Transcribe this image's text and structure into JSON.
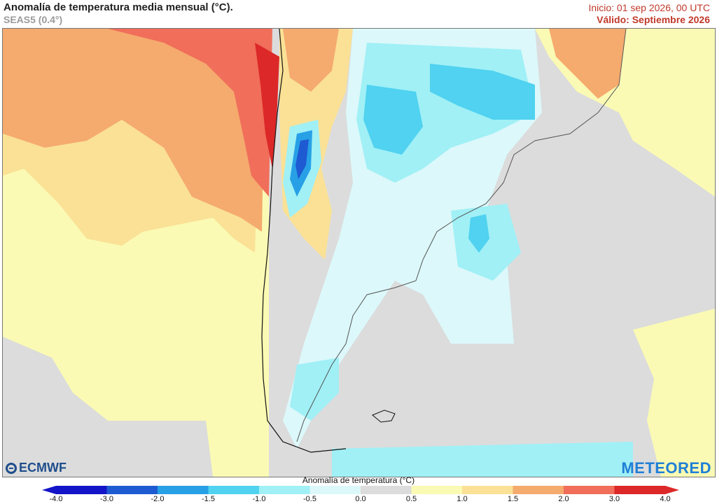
{
  "header": {
    "title": "Anomalía de temperatura media mensual (°C).",
    "model": "SEAS5 (0.4°)",
    "init_text": "Inicio: 01 sep 2026, 00 UTC",
    "valid_text": "Válido: Septiembre 2026"
  },
  "logos": {
    "left": "ECMWF",
    "right": "METEORED"
  },
  "legend": {
    "title": "Anomalía de temperatura (°C)",
    "ticks": [
      "-4.0",
      "-3.0",
      "-2.0",
      "-1.5",
      "-1.0",
      "-0.5",
      "0.0",
      "0.5",
      "1.0",
      "1.5",
      "2.0",
      "3.0",
      "4.0"
    ],
    "colors": [
      "#1414c8",
      "#1e5ad2",
      "#28a0e6",
      "#50d2f0",
      "#a0f0f6",
      "#dcf8fa",
      "#dcdcdc",
      "#fafab4",
      "#fae196",
      "#f5aa6e",
      "#f06e5a",
      "#dc2828"
    ]
  },
  "map": {
    "colors": {
      "ocean_neutral": "#dcdcdc",
      "land_neutral": "#d7d7d7",
      "weak_warm": "#fafab4",
      "warm": "#fae196",
      "moderate_warm": "#f5aa6e",
      "strong_warm": "#f06e5a",
      "extreme_warm": "#dc2828",
      "weak_cool": "#dcf8fa",
      "cool": "#a0f0f6",
      "moderate_cool": "#50d2f0",
      "strong_cool": "#28a0e6",
      "extreme_cool": "#1e5ad2"
    }
  }
}
